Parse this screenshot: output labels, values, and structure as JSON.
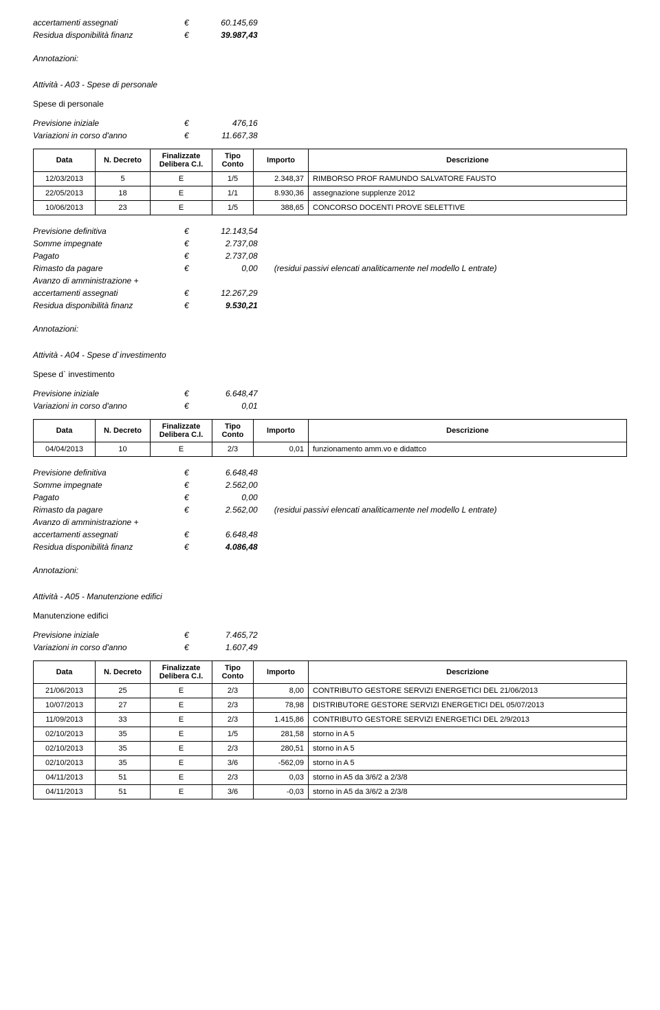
{
  "top": {
    "accertamenti_label": "accertamenti assegnati",
    "accertamenti_value": "60.145,69",
    "residua_label": "Residua disponibilità finanz",
    "residua_value": "39.987,43"
  },
  "annot_label": "Annotazioni:",
  "residui_note": "(residui passivi elencati analiticamente nel modello L entrate)",
  "currency": "€",
  "table_headers": {
    "data": "Data",
    "decreto": "N. Decreto",
    "finalizzate": "Finalizzate Delibera C.I.",
    "tipo": "Tipo Conto",
    "importo": "Importo",
    "descrizione": "Descrizione"
  },
  "a03": {
    "title": "Attività - A03 - Spese di personale",
    "subtitle": "Spese di personale",
    "prev_iniz_label": "Previsione iniziale",
    "prev_iniz_value": "476,16",
    "var_label": "Variazioni in corso d'anno",
    "var_value": "11.667,38",
    "rows": [
      {
        "data": "12/03/2013",
        "decreto": "5",
        "fin": "E",
        "tipo": "1/5",
        "importo": "2.348,37",
        "desc": "RIMBORSO PROF RAMUNDO SALVATORE FAUSTO"
      },
      {
        "data": "22/05/2013",
        "decreto": "18",
        "fin": "E",
        "tipo": "1/1",
        "importo": "8.930,36",
        "desc": "assegnazione supplenze 2012"
      },
      {
        "data": "10/06/2013",
        "decreto": "23",
        "fin": "E",
        "tipo": "1/5",
        "importo": "388,65",
        "desc": "CONCORSO DOCENTI PROVE SELETTIVE"
      }
    ],
    "prev_def_label": "Previsione definitiva",
    "prev_def_value": "12.143,54",
    "somme_label": "Somme impegnate",
    "somme_value": "2.737,08",
    "pagato_label": "Pagato",
    "pagato_value": "2.737,08",
    "rimasto_label": "Rimasto da pagare",
    "rimasto_value": "0,00",
    "avanzo_label": "Avanzo di amministrazione +",
    "accert_label": "accertamenti assegnati",
    "accert_value": "12.267,29",
    "residua_label": "Residua disponibilità finanz",
    "residua_value": "9.530,21"
  },
  "a04": {
    "title": "Attività - A04 - Spese d`investimento",
    "subtitle": "Spese d` investimento",
    "prev_iniz_label": "Previsione iniziale",
    "prev_iniz_value": "6.648,47",
    "var_label": "Variazioni in corso d'anno",
    "var_value": "0,01",
    "rows": [
      {
        "data": "04/04/2013",
        "decreto": "10",
        "fin": "E",
        "tipo": "2/3",
        "importo": "0,01",
        "desc": "funzionamento amm.vo e didattco"
      }
    ],
    "prev_def_label": "Previsione definitiva",
    "prev_def_value": "6.648,48",
    "somme_label": "Somme impegnate",
    "somme_value": "2.562,00",
    "pagato_label": "Pagato",
    "pagato_value": "0,00",
    "rimasto_label": "Rimasto da pagare",
    "rimasto_value": "2.562,00",
    "avanzo_label": "Avanzo di amministrazione +",
    "accert_label": "accertamenti assegnati",
    "accert_value": "6.648,48",
    "residua_label": "Residua disponibilità finanz",
    "residua_value": "4.086,48"
  },
  "a05": {
    "title": "Attività - A05 - Manutenzione edifici",
    "subtitle": "Manutenzione edifici",
    "prev_iniz_label": "Previsione iniziale",
    "prev_iniz_value": "7.465,72",
    "var_label": "Variazioni in corso d'anno",
    "var_value": "1.607,49",
    "rows": [
      {
        "data": "21/06/2013",
        "decreto": "25",
        "fin": "E",
        "tipo": "2/3",
        "importo": "8,00",
        "desc": "CONTRIBUTO GESTORE SERVIZI ENERGETICI DEL 21/06/2013"
      },
      {
        "data": "10/07/2013",
        "decreto": "27",
        "fin": "E",
        "tipo": "2/3",
        "importo": "78,98",
        "desc": "DISTRIBUTORE GESTORE SERVIZI ENERGETICI DEL 05/07/2013"
      },
      {
        "data": "11/09/2013",
        "decreto": "33",
        "fin": "E",
        "tipo": "2/3",
        "importo": "1.415,86",
        "desc": "CONTRIBUTO GESTORE SERVIZI ENERGETICI DEL 2/9/2013"
      },
      {
        "data": "02/10/2013",
        "decreto": "35",
        "fin": "E",
        "tipo": "1/5",
        "importo": "281,58",
        "desc": "storno in A 5"
      },
      {
        "data": "02/10/2013",
        "decreto": "35",
        "fin": "E",
        "tipo": "2/3",
        "importo": "280,51",
        "desc": "storno in A 5"
      },
      {
        "data": "02/10/2013",
        "decreto": "35",
        "fin": "E",
        "tipo": "3/6",
        "importo": "-562,09",
        "desc": "storno in A 5"
      },
      {
        "data": "04/11/2013",
        "decreto": "51",
        "fin": "E",
        "tipo": "2/3",
        "importo": "0,03",
        "desc": "storno in A5 da 3/6/2 a 2/3/8"
      },
      {
        "data": "04/11/2013",
        "decreto": "51",
        "fin": "E",
        "tipo": "3/6",
        "importo": "-0,03",
        "desc": "storno in A5 da 3/6/2 a 2/3/8"
      }
    ]
  }
}
